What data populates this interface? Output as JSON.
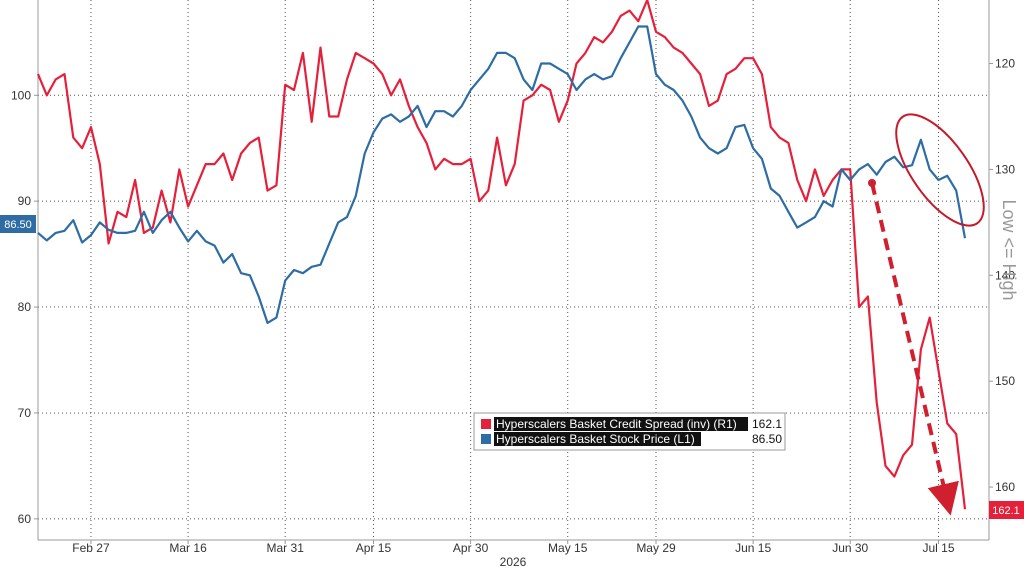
{
  "chart_data": {
    "type": "line",
    "x_labels": [
      "Feb 27",
      "Mar 16",
      "Mar 31",
      "Apr 15",
      "Apr 30",
      "May 15",
      "May 29",
      "Jun 15",
      "Jun 30",
      "Jul 15"
    ],
    "x_label_index": [
      6,
      17,
      28,
      38,
      49,
      60,
      70,
      81,
      92,
      102
    ],
    "year": "2026",
    "left_axis": {
      "ylim": [
        58,
        109
      ],
      "ticks": [
        60,
        70,
        80,
        90,
        100
      ]
    },
    "right_axis": {
      "inverted": true,
      "ylim": [
        165,
        114
      ],
      "ticks": [
        120,
        130,
        140,
        150,
        160
      ],
      "label": "Low <= High"
    },
    "series": [
      {
        "name": "Hyperscalers Basket Credit Spread (inv) (R1)",
        "axis": "right",
        "color": "#e5203a",
        "last_value": "162.1",
        "values": [
          121,
          123,
          121.5,
          121,
          127,
          128,
          126,
          129.5,
          137,
          134,
          134.5,
          131,
          136,
          135.5,
          132,
          135,
          130,
          133.5,
          131.5,
          129.5,
          129.5,
          128.5,
          131,
          128.5,
          127.5,
          127,
          132,
          131.5,
          122,
          122.5,
          119,
          125.5,
          118.5,
          125,
          125,
          121.5,
          119,
          119.5,
          120,
          121,
          123,
          121.5,
          124,
          126,
          127.5,
          130,
          129,
          129.5,
          129.5,
          129,
          133,
          132,
          127,
          131.5,
          129.5,
          123.5,
          123,
          122,
          122.5,
          125.5,
          123.5,
          120,
          119,
          117.5,
          118,
          117,
          115.5,
          115,
          116,
          114,
          117,
          117.5,
          118.5,
          119,
          120,
          121,
          124,
          123.5,
          121,
          120.5,
          119.5,
          119.5,
          121,
          126,
          127,
          127.5,
          131,
          133,
          130,
          132.5,
          131,
          130,
          130,
          143,
          142,
          152,
          158,
          159,
          157,
          156,
          147,
          144,
          149,
          154,
          155,
          162.1
        ]
      },
      {
        "name": "Hyperscalers Basket Stock Price (L1)",
        "axis": "left",
        "color": "#2e6da4",
        "last_value": "86.50",
        "values": [
          87,
          86.3,
          87,
          87.2,
          88.2,
          86.1,
          86.8,
          88,
          87.3,
          87,
          87,
          87.2,
          89,
          87,
          88.2,
          89,
          87.5,
          86.2,
          87.2,
          86.2,
          85.8,
          84.2,
          85,
          83.2,
          83,
          81,
          78.5,
          79,
          82.5,
          83.5,
          83.2,
          83.8,
          84,
          86,
          88,
          88.5,
          90.5,
          94.5,
          96.5,
          97.8,
          98.2,
          97.5,
          98,
          99,
          97,
          98.5,
          98.5,
          98,
          99,
          100.5,
          101.5,
          102.5,
          104,
          104,
          103.5,
          101.5,
          100.5,
          103,
          103,
          102.5,
          102,
          100.5,
          101.5,
          102,
          101.5,
          101.8,
          103.5,
          105,
          106.5,
          106.5,
          102,
          101,
          100.5,
          99.5,
          98,
          96,
          95,
          94.5,
          95,
          97,
          97.2,
          95,
          94,
          91.2,
          90.5,
          89,
          87.5,
          88,
          88.5,
          90,
          89.5,
          93,
          92,
          93,
          93.5,
          92.5,
          93.7,
          94.2,
          93.2,
          93.4,
          95.8,
          93,
          92,
          92.4,
          91,
          86.5
        ]
      }
    ],
    "right_tag": "162.1",
    "left_tag": "86.50",
    "annotations": [
      "circle-around-stock-drop",
      "dashed-arrow-spread-widening"
    ]
  }
}
